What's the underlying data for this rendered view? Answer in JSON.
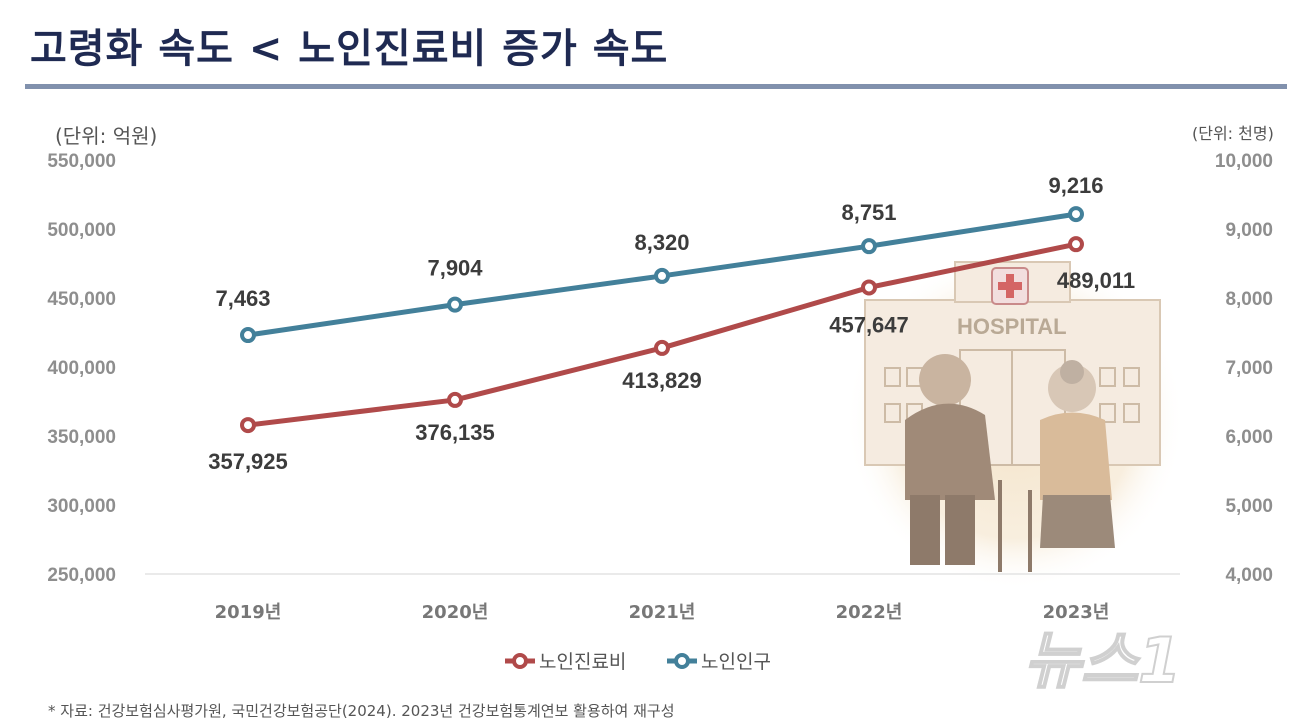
{
  "title": "고령화 속도 < 노인진료비 증가 속도",
  "source_note": "* 자료: 건강보험심사평가원, 국민건강보험공단(2024).  2023년 건강보험통계연보 활용하여 재구성",
  "watermark_text": "뉴스1",
  "illustration_sign": "HOSPITAL",
  "colors": {
    "cost": "#b04a4a",
    "population": "#43809a",
    "title": "#1f2a52",
    "rule": "#8191ad"
  },
  "chart_data": {
    "type": "line",
    "categories": [
      "2019년",
      "2020년",
      "2021년",
      "2022년",
      "2023년"
    ],
    "left_axis": {
      "unit_label": "(단위: 억원)",
      "range": [
        250000,
        550000
      ],
      "ticks": [
        "250,000",
        "300,000",
        "350,000",
        "400,000",
        "450,000",
        "500,000",
        "550,000"
      ]
    },
    "right_axis": {
      "unit_label": "(단위: 천명)",
      "range": [
        4000,
        10000
      ],
      "ticks": [
        "4,000",
        "5,000",
        "6,000",
        "7,000",
        "8,000",
        "9,000",
        "10,000"
      ]
    },
    "series": [
      {
        "name": "노인진료비",
        "axis": "left",
        "color": "#b04a4a",
        "values": [
          357925,
          376135,
          413829,
          457647,
          489011
        ],
        "labels": [
          "357,925",
          "376,135",
          "413,829",
          "457,647",
          "489,011"
        ]
      },
      {
        "name": "노인인구",
        "axis": "right",
        "color": "#43809a",
        "values": [
          7463,
          7904,
          8320,
          8751,
          9216
        ],
        "labels": [
          "7,463",
          "7,904",
          "8,320",
          "8,751",
          "9,216"
        ]
      }
    ],
    "legend_position": "bottom-center",
    "grid": false
  }
}
